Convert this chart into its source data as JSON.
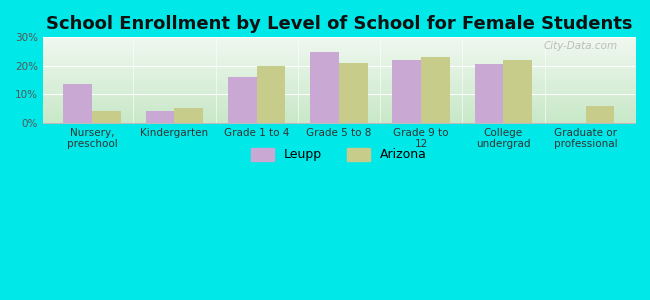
{
  "title": "School Enrollment by Level of School for Female Students",
  "categories": [
    "Nursery,\npreschool",
    "Kindergarten",
    "Grade 1 to 4",
    "Grade 5 to 8",
    "Grade 9 to\n12",
    "College\nundergrad",
    "Graduate or\nprofessional"
  ],
  "leupp": [
    13.5,
    4.0,
    16.0,
    25.0,
    22.0,
    20.5,
    0.0
  ],
  "arizona": [
    4.0,
    5.0,
    20.0,
    21.0,
    23.0,
    22.0,
    6.0
  ],
  "leupp_color": "#c9a8d4",
  "arizona_color": "#c8cc8a",
  "background_color": "#00e8e8",
  "grad_top": "#f0f8f0",
  "grad_bottom": "#c8e8c8",
  "ylim": [
    0,
    30
  ],
  "yticks": [
    0,
    10,
    20,
    30
  ],
  "ytick_labels": [
    "0%",
    "10%",
    "20%",
    "30%"
  ],
  "bar_width": 0.35,
  "legend_leupp": "Leupp",
  "legend_arizona": "Arizona",
  "title_fontsize": 13,
  "tick_fontsize": 7.5,
  "legend_fontsize": 9,
  "watermark": "City-Data.com"
}
